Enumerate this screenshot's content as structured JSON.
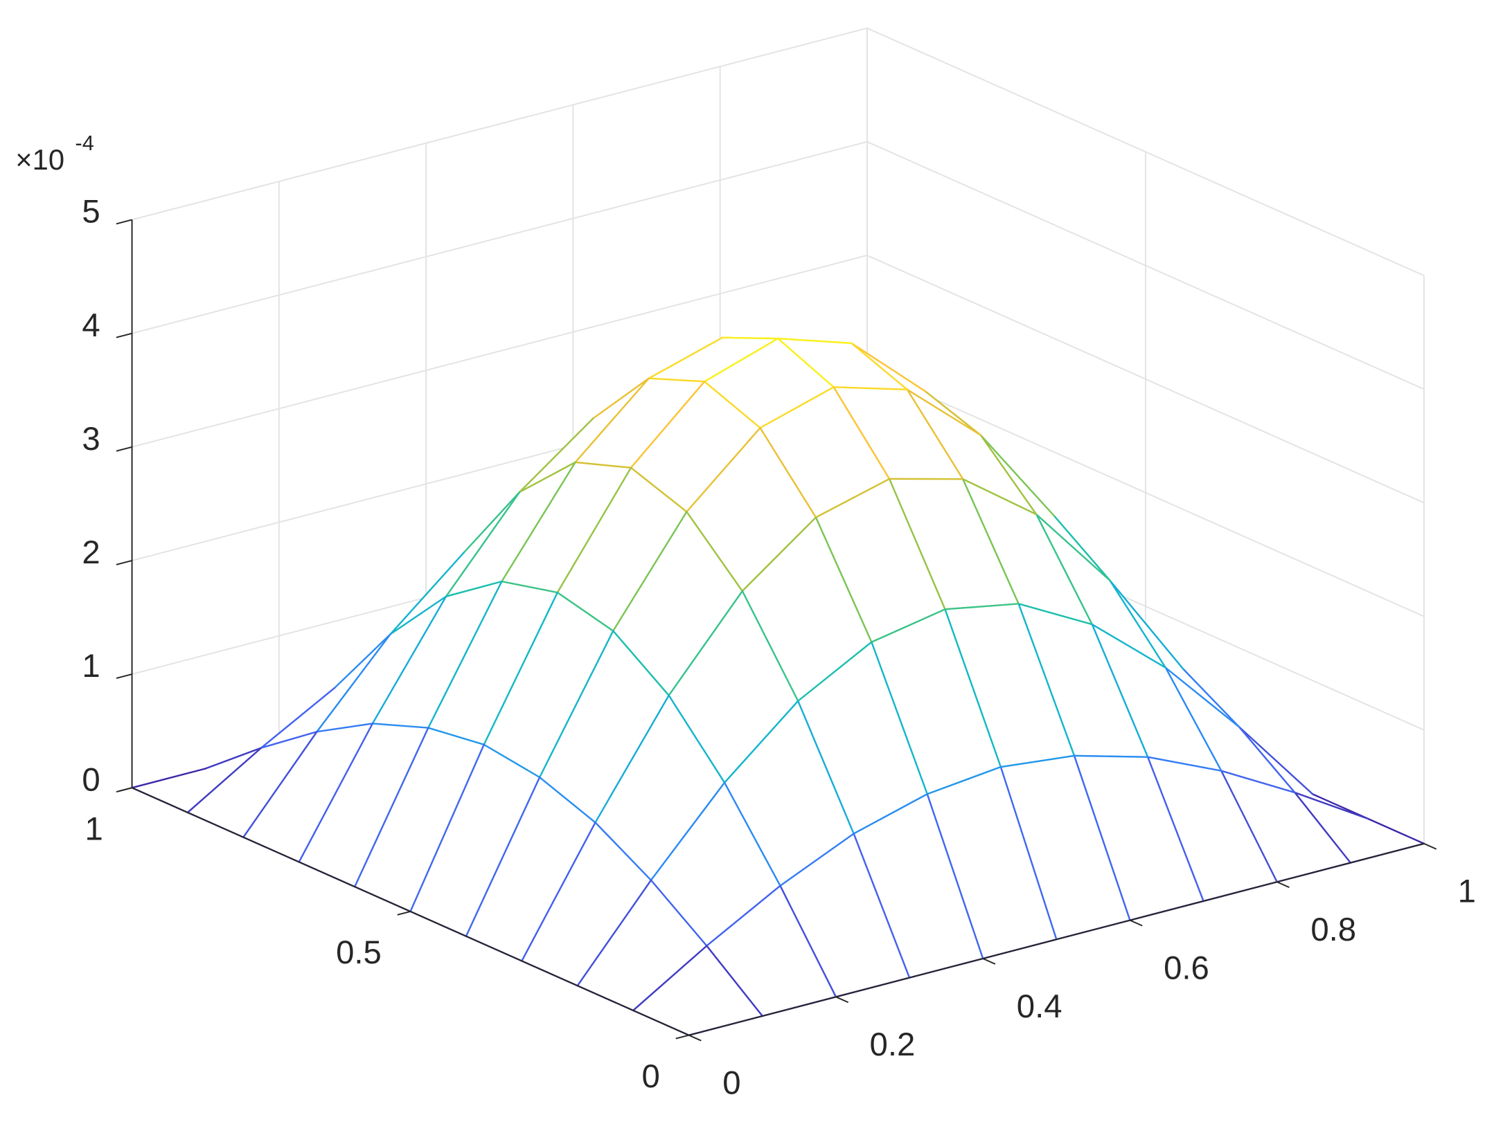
{
  "chart_data": {
    "type": "mesh",
    "x": [
      0,
      0.1,
      0.2,
      0.3,
      0.4,
      0.5,
      0.6,
      0.7,
      0.8,
      0.9,
      1
    ],
    "y": [
      0,
      0.1,
      0.2,
      0.3,
      0.4,
      0.5,
      0.6,
      0.7,
      0.8,
      0.9,
      1
    ],
    "z": [
      [
        0,
        0,
        0,
        0,
        0,
        0,
        0,
        0,
        0,
        0,
        0
      ],
      [
        0,
        0.4,
        0.76,
        1.05,
        1.23,
        1.3,
        1.23,
        1.05,
        0.76,
        0.4,
        0
      ],
      [
        0,
        0.76,
        1.45,
        2,
        2.35,
        2.47,
        2.35,
        2,
        1.45,
        0.76,
        0
      ],
      [
        0,
        1.05,
        2,
        2.75,
        3.23,
        3.4,
        3.23,
        2.75,
        2,
        1.05,
        0
      ],
      [
        0,
        1.23,
        2.35,
        3.23,
        3.8,
        3.99,
        3.8,
        3.23,
        2.35,
        1.23,
        0
      ],
      [
        0,
        1.3,
        2.47,
        3.4,
        3.99,
        4.2,
        3.99,
        3.4,
        2.47,
        1.3,
        0
      ],
      [
        0,
        1.23,
        2.35,
        3.23,
        3.8,
        3.99,
        3.8,
        3.23,
        2.35,
        1.23,
        0
      ],
      [
        0,
        1.05,
        2,
        2.75,
        3.23,
        3.4,
        3.23,
        2.75,
        2,
        1.05,
        0
      ],
      [
        0,
        0.76,
        1.45,
        2,
        2.35,
        2.47,
        2.35,
        2,
        1.45,
        0.76,
        0
      ],
      [
        0,
        0.4,
        0.76,
        1.05,
        1.23,
        1.3,
        1.23,
        1.05,
        0.76,
        0.4,
        0
      ],
      [
        0,
        0,
        0,
        0,
        0,
        0,
        0,
        0,
        0,
        0,
        0
      ]
    ],
    "xlim": [
      0,
      1
    ],
    "ylim": [
      0,
      1
    ],
    "zlim": [
      0,
      5
    ],
    "xticks": [
      0,
      0.2,
      0.4,
      0.6,
      0.8,
      1
    ],
    "yticks": [
      0,
      0.5,
      1
    ],
    "zticks": [
      0,
      1,
      2,
      3,
      4,
      5
    ],
    "z_multiplier": "×10",
    "z_exponent": "-4",
    "grid": true,
    "colormap": [
      "#3e26a8",
      "#4560ee",
      "#2e87f7",
      "#15b1d4",
      "#12beb9",
      "#59c764",
      "#c2c031",
      "#fcc236",
      "#f9fb15"
    ]
  }
}
